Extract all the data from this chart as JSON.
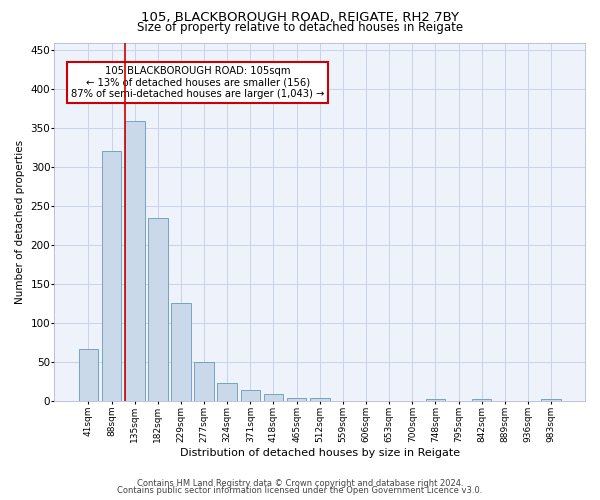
{
  "title1": "105, BLACKBOROUGH ROAD, REIGATE, RH2 7BY",
  "title2": "Size of property relative to detached houses in Reigate",
  "xlabel": "Distribution of detached houses by size in Reigate",
  "ylabel": "Number of detached properties",
  "footer1": "Contains HM Land Registry data © Crown copyright and database right 2024.",
  "footer2": "Contains public sector information licensed under the Open Government Licence v3.0.",
  "annotation_line1": "105 BLACKBOROUGH ROAD: 105sqm",
  "annotation_line2": "← 13% of detached houses are smaller (156)",
  "annotation_line3": "87% of semi-detached houses are larger (1,043) →",
  "bar_color": "#c9d9ea",
  "bar_edge_color": "#6699bb",
  "vline_color": "#cc0000",
  "grid_color": "#c8d4e8",
  "background_color": "#eef2fb",
  "categories": [
    "41sqm",
    "88sqm",
    "135sqm",
    "182sqm",
    "229sqm",
    "277sqm",
    "324sqm",
    "371sqm",
    "418sqm",
    "465sqm",
    "512sqm",
    "559sqm",
    "606sqm",
    "653sqm",
    "700sqm",
    "748sqm",
    "795sqm",
    "842sqm",
    "889sqm",
    "936sqm",
    "983sqm"
  ],
  "values": [
    67,
    321,
    360,
    235,
    126,
    50,
    24,
    15,
    10,
    5,
    4,
    1,
    1,
    0,
    0,
    3,
    0,
    3,
    0,
    0,
    3
  ],
  "vline_x": 1.57,
  "ylim": [
    0,
    460
  ],
  "yticks": [
    0,
    50,
    100,
    150,
    200,
    250,
    300,
    350,
    400,
    450
  ]
}
